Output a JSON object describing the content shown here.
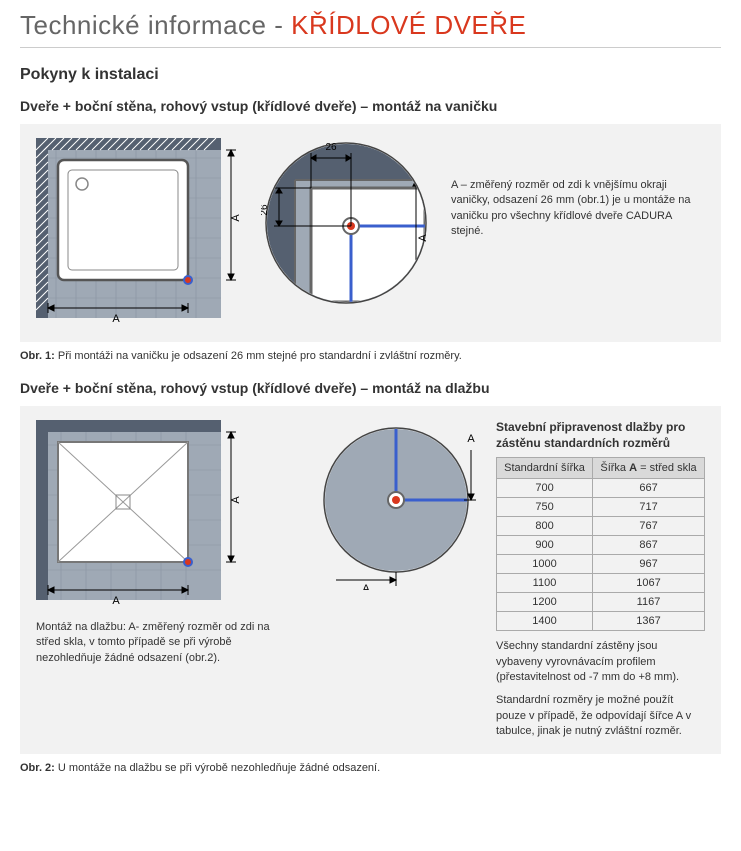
{
  "title_prefix": "Technické informace - ",
  "title_accent": "KŘÍDLOVÉ DVEŘE",
  "heading_instructions": "Pokyny k instalaci",
  "section1": {
    "heading": "Dveře + boční stěna, rohový vstup (křídlové dveře) – montáž na vaničku",
    "legend": "A – změřený rozměr od zdi k vnějšímu okraji vaničky, odsazení 26 mm (obr.1) je u montáže na vaničku pro všechny křídlové dveře CADURA stejné.",
    "caption_label": "Obr. 1:",
    "caption_text": " Při montáži na vaničku je odsazení 26 mm stejné pro standardní i zvláštní rozměry.",
    "dim_26_top": "26",
    "dim_26_side": "26",
    "dim_A": "A"
  },
  "section2": {
    "heading": "Dveře + boční stěna, rohový vstup (křídlové dveře) – montáž na dlažbu",
    "legend": "Montáž na dlažbu: A- změřený rozměr od zdi na střed skla, v tomto případě se při výrobě nezohledňuje žádné odsazení (obr.2).",
    "caption_label": "Obr. 2:",
    "caption_text": " U montáže na dlažbu se při výrobě nezohledňuje žádné odsazení.",
    "dim_A": "A",
    "table_title": "Stavební připravenost dlažby pro zástěnu standardních rozměrů",
    "col1": "Standardní šířka",
    "col2": "Šířka A = střed skla",
    "rows": [
      [
        "700",
        "667"
      ],
      [
        "750",
        "717"
      ],
      [
        "800",
        "767"
      ],
      [
        "900",
        "867"
      ],
      [
        "1000",
        "967"
      ],
      [
        "1100",
        "1067"
      ],
      [
        "1200",
        "1167"
      ],
      [
        "1400",
        "1367"
      ]
    ],
    "note1": "Všechny standardní zástěny jsou vybaveny vyrovnávacím profilem (přestavitelnost od -7 mm do +8 mm).",
    "note2": "Standardní rozměry je možné použít pouze v případě, že odpovídají šířce A v tabulce, jinak je nutný zvláštní rozměr."
  },
  "colors": {
    "accent": "#d9381e",
    "gray_bg": "#f2f2f2",
    "tile": "#9fa9b5",
    "wall": "#556070",
    "tray": "#ffffff",
    "tray_border": "#666666",
    "dim_line": "#000000",
    "circle_fill": "#ffffff",
    "hinge_blue": "#3a5fcd",
    "hinge_red": "#d9381e"
  }
}
